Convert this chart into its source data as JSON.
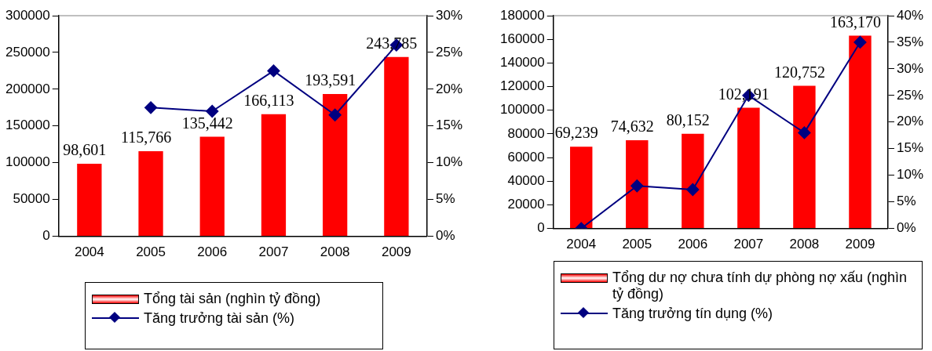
{
  "chart_data": [
    {
      "type": "bar",
      "categories": [
        "2004",
        "2005",
        "2006",
        "2007",
        "2008",
        "2009"
      ],
      "ylim": [
        0,
        300000
      ],
      "yticks": [
        0,
        50000,
        100000,
        150000,
        200000,
        250000,
        300000
      ],
      "y2lim": [
        0,
        30
      ],
      "y2ticks": [
        {
          "value": 0,
          "label": "0%"
        },
        {
          "value": 5,
          "label": "5%"
        },
        {
          "value": 10,
          "label": "10%"
        },
        {
          "value": 15,
          "label": "15%"
        },
        {
          "value": 20,
          "label": "20%"
        },
        {
          "value": 25,
          "label": "25%"
        },
        {
          "value": 30,
          "label": "30%"
        }
      ],
      "legend": "bottom",
      "marker": "diamond",
      "grid": false,
      "series": [
        {
          "name": "Tổng tài sản (nghìn tỷ đồng)",
          "color": "#ff0000",
          "values": [
            98601,
            115766,
            135442,
            166113,
            193591,
            243785
          ],
          "value_labels": [
            "98,601",
            "115,766",
            "135,442",
            "166,113",
            "193,591",
            "243,785"
          ]
        },
        {
          "type": "line",
          "axis": "y2",
          "name": "Tăng trưởng tài sản (%)",
          "color": "#000080",
          "values": [
            null,
            17.5,
            17.0,
            22.5,
            16.5,
            26.0
          ]
        }
      ]
    },
    {
      "type": "bar",
      "categories": [
        "2004",
        "2005",
        "2006",
        "2007",
        "2008",
        "2009"
      ],
      "ylim": [
        0,
        180000
      ],
      "yticks": [
        0,
        20000,
        40000,
        60000,
        80000,
        100000,
        120000,
        140000,
        160000,
        180000
      ],
      "y2lim": [
        0,
        40
      ],
      "y2ticks": [
        {
          "value": 0,
          "label": "0%"
        },
        {
          "value": 5,
          "label": "5%"
        },
        {
          "value": 10,
          "label": "10%"
        },
        {
          "value": 15,
          "label": "15%"
        },
        {
          "value": 20,
          "label": "20%"
        },
        {
          "value": 25,
          "label": "25%"
        },
        {
          "value": 30,
          "label": "30%"
        },
        {
          "value": 35,
          "label": "35%"
        },
        {
          "value": 40,
          "label": "40%"
        }
      ],
      "legend": "bottom",
      "marker": "diamond",
      "grid": false,
      "series": [
        {
          "name": "Tổng dư nợ chưa tính dự phòng nợ xấu (nghìn tỷ đồng)",
          "color": "#ff0000",
          "values": [
            69239,
            74632,
            80152,
            102191,
            120752,
            163170
          ],
          "value_labels": [
            "69,239",
            "74,632",
            "80,152",
            "102,191",
            "120,752",
            "163,170"
          ]
        },
        {
          "type": "line",
          "axis": "y2",
          "name": "Tăng trưởng tín dụng (%)",
          "color": "#000080",
          "values": [
            0,
            8.0,
            7.3,
            25.0,
            18.0,
            35.0
          ]
        }
      ]
    }
  ]
}
